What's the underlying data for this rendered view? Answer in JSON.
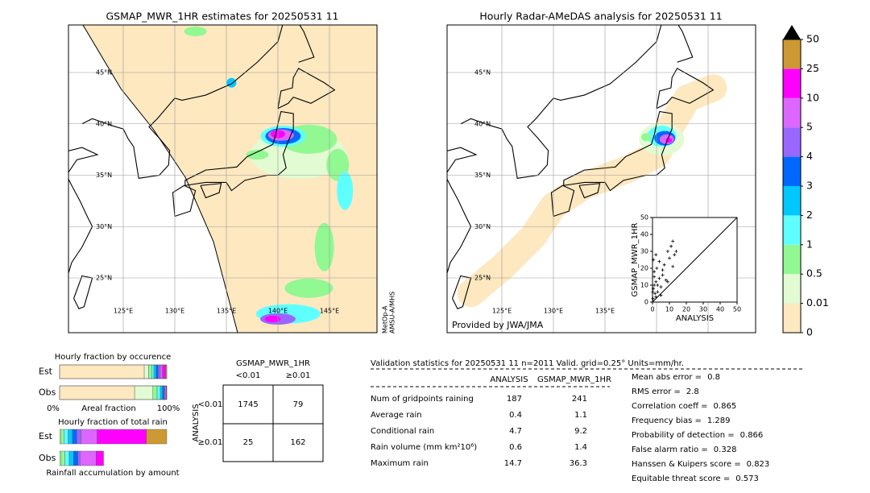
{
  "left_map": {
    "title": "GSMAP_MWR_1HR estimates for 20250531 11",
    "lat_labels": [
      "45°N",
      "40°N",
      "35°N",
      "30°N",
      "25°N"
    ],
    "lon_labels": [
      "125°E",
      "130°E",
      "135°E",
      "140°E",
      "145°E"
    ],
    "satellite": "MetOp-A",
    "sensor": "AMSU-A/MHS"
  },
  "right_map": {
    "title": "Hourly Radar-AMeDAS analysis for 20250531 11",
    "lat_labels": [
      "45°N",
      "40°N",
      "35°N",
      "30°N",
      "25°N"
    ],
    "lon_labels": [
      "125°E",
      "130°E",
      "135°E"
    ],
    "credit": "Provided by JWA/JMA"
  },
  "scatter": {
    "xlabel": "ANALYSIS",
    "ylabel": "GSMAP_MWR_1HR",
    "xlim": [
      0,
      50
    ],
    "ylim": [
      0,
      50
    ],
    "ticks": [
      0,
      10,
      20,
      30,
      40,
      50
    ],
    "x": [
      0.3,
      0.5,
      1,
      1.5,
      2,
      2.5,
      3,
      0.5,
      1,
      2,
      3,
      4,
      5,
      6,
      7,
      8,
      9,
      10,
      11,
      12,
      13,
      14,
      12,
      9,
      6,
      4,
      1,
      2,
      0.2,
      5
    ],
    "y": [
      2,
      8,
      15,
      5,
      12,
      20,
      6,
      25,
      18,
      3,
      10,
      14,
      9,
      16,
      22,
      13,
      30,
      26,
      33,
      36,
      28,
      30,
      21,
      12,
      19,
      24,
      10,
      28,
      6,
      4
    ]
  },
  "colorbar": {
    "levels": [
      0,
      0.01,
      0.5,
      1,
      2,
      3,
      4,
      5,
      10,
      25,
      50
    ],
    "colors": [
      "#fde8c0",
      "#e2fbd2",
      "#92f892",
      "#60ffff",
      "#00c8ff",
      "#0068ff",
      "#9966ff",
      "#dd66ff",
      "#ff00ff",
      "#cc9933"
    ]
  },
  "occurrence": {
    "title": "Hourly fraction by occurence",
    "rows": [
      {
        "label": "Est",
        "fractions": [
          0.79,
          0.04,
          0.03,
          0.02,
          0.02,
          0.02,
          0.02,
          0.02,
          0.03,
          0.01
        ]
      },
      {
        "label": "Obs",
        "fractions": [
          0.7,
          0.17,
          0.04,
          0.03,
          0.02,
          0.015,
          0.01,
          0.01,
          0.005,
          0
        ]
      }
    ],
    "axis_left": "0%",
    "axis_middle": "Areal fraction",
    "axis_right": "100%"
  },
  "total_rain": {
    "title": "Hourly fraction of total rain",
    "rows": [
      {
        "label": "Est",
        "fractions": [
          0,
          0.01,
          0.03,
          0.04,
          0.04,
          0.04,
          0.04,
          0.15,
          0.46,
          0.19
        ]
      },
      {
        "label": "Obs",
        "fractions": [
          0,
          0.01,
          0.04,
          0.04,
          0.04,
          0.04,
          0.02,
          0.15,
          0.07,
          0
        ]
      }
    ],
    "caption": "Rainfall accumulation by amount"
  },
  "contingency": {
    "title": "GSMAP_MWR_1HR",
    "col_labels": [
      "<0.01",
      "≥0.01"
    ],
    "row_title": "ANALYSIS",
    "row_labels": [
      "<0.01",
      "≥0.01"
    ],
    "cells": [
      [
        1745,
        79
      ],
      [
        25,
        162
      ]
    ]
  },
  "stats": {
    "header": "Validation statistics for 20250531 11  n=2011 Valid. grid=0.25° Units=mm/hr.",
    "col_labels": [
      "ANALYSIS",
      "GSMAP_MWR_1HR"
    ],
    "rows": [
      {
        "label": "Num of gridpoints raining",
        "values": [
          187,
          241
        ]
      },
      {
        "label": "Average rain",
        "values": [
          0.4,
          1.1
        ]
      },
      {
        "label": "Conditional rain",
        "values": [
          4.7,
          9.2
        ]
      },
      {
        "label": "Rain volume (mm km²10⁶)",
        "values": [
          0.6,
          1.4
        ]
      },
      {
        "label": "Maximum rain",
        "values": [
          14.7,
          36.3
        ]
      }
    ],
    "scores": [
      {
        "label": "Mean abs error =",
        "value": 0.8
      },
      {
        "label": "RMS error =",
        "value": 2.8
      },
      {
        "label": "Correlation coeff =",
        "value": 0.865
      },
      {
        "label": "Frequency bias =",
        "value": 1.289
      },
      {
        "label": "Probability of detection =",
        "value": 0.866
      },
      {
        "label": "False alarm ratio =",
        "value": 0.328
      },
      {
        "label": "Hanssen & Kuipers score =",
        "value": 0.823
      },
      {
        "label": "Equitable threat score =",
        "value": 0.573
      }
    ]
  }
}
